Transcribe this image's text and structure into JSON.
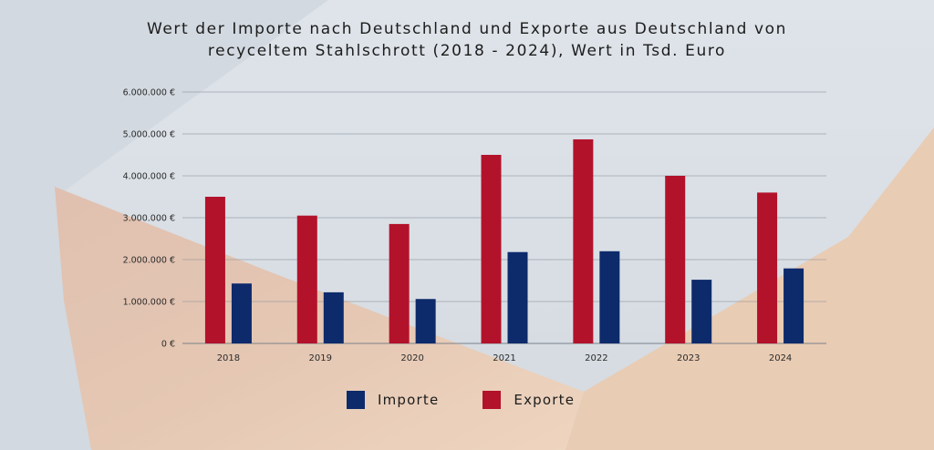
{
  "title_lines": [
    "Wert der Importe nach Deutschland und Exporte aus Deutschland von",
    "recyceltem Stahlschrott (2018 - 2024), Wert in Tsd. Euro"
  ],
  "colors": {
    "importe": "#0d2a6b",
    "exporte": "#b3122b"
  },
  "chart_data": {
    "type": "bar",
    "title": "Wert der Importe nach Deutschland und Exporte aus Deutschland von recyceltem Stahlschrott (2018 - 2024), Wert in Tsd. Euro",
    "categories": [
      "2018",
      "2019",
      "2020",
      "2021",
      "2022",
      "2023",
      "2024"
    ],
    "series": [
      {
        "name": "Exporte",
        "values": [
          3500000,
          3050000,
          2850000,
          4500000,
          4870000,
          4000000,
          3600000
        ]
      },
      {
        "name": "Importe",
        "values": [
          1430000,
          1220000,
          1060000,
          2180000,
          2200000,
          1520000,
          1790000
        ]
      }
    ],
    "ylim": [
      0,
      6000000
    ],
    "yticks": [
      "0 €",
      "1.000.000 €",
      "2.000.000 €",
      "3.000.000 €",
      "4.000.000 €",
      "5.000.000 €",
      "6.000.000 €"
    ],
    "grid": true,
    "legend_position": "bottom-center"
  },
  "legend": [
    {
      "label": "Importe",
      "color": "#0d2a6b"
    },
    {
      "label": "Exporte",
      "color": "#b3122b"
    }
  ]
}
